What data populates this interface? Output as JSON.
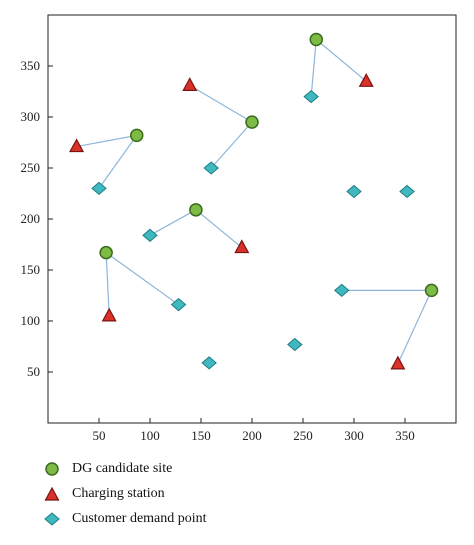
{
  "chart_data": {
    "type": "scatter",
    "xlim": [
      0,
      400
    ],
    "ylim": [
      0,
      400
    ],
    "x_ticks": [
      50,
      100,
      150,
      200,
      250,
      300,
      350
    ],
    "y_ticks": [
      50,
      100,
      150,
      200,
      250,
      300,
      350
    ],
    "grid": false,
    "legend_position": "below",
    "colors": {
      "dg": "#7dbb45",
      "dg_stroke": "#3a6b1e",
      "charging": "#d8322b",
      "charging_stroke": "#7a1410",
      "demand": "#3fb8bf",
      "demand_stroke": "#1f7d84",
      "line": "#8db6da"
    },
    "series": [
      {
        "name": "DG candidate site",
        "marker": "circle",
        "points": [
          [
            263,
            376
          ],
          [
            200,
            295
          ],
          [
            87,
            282
          ],
          [
            145,
            209
          ],
          [
            57,
            167
          ],
          [
            376,
            130
          ]
        ]
      },
      {
        "name": "Charging station",
        "marker": "triangle",
        "points": [
          [
            139,
            331
          ],
          [
            312,
            335
          ],
          [
            28,
            271
          ],
          [
            190,
            172
          ],
          [
            60,
            105
          ],
          [
            343,
            58
          ]
        ]
      },
      {
        "name": "Customer demand point",
        "marker": "diamond",
        "points": [
          [
            258,
            320
          ],
          [
            160,
            250
          ],
          [
            50,
            230
          ],
          [
            100,
            184
          ],
          [
            300,
            227
          ],
          [
            352,
            227
          ],
          [
            128,
            116
          ],
          [
            288,
            130
          ],
          [
            158,
            59
          ],
          [
            242,
            77
          ]
        ]
      }
    ],
    "links": [
      [
        [
          263,
          376
        ],
        [
          258,
          320
        ]
      ],
      [
        [
          263,
          376
        ],
        [
          312,
          335
        ]
      ],
      [
        [
          200,
          295
        ],
        [
          139,
          331
        ]
      ],
      [
        [
          200,
          295
        ],
        [
          160,
          250
        ]
      ],
      [
        [
          87,
          282
        ],
        [
          28,
          271
        ]
      ],
      [
        [
          87,
          282
        ],
        [
          50,
          230
        ]
      ],
      [
        [
          145,
          209
        ],
        [
          100,
          184
        ]
      ],
      [
        [
          145,
          209
        ],
        [
          190,
          172
        ]
      ],
      [
        [
          57,
          167
        ],
        [
          60,
          105
        ]
      ],
      [
        [
          57,
          167
        ],
        [
          128,
          116
        ]
      ],
      [
        [
          376,
          130
        ],
        [
          288,
          130
        ]
      ],
      [
        [
          376,
          130
        ],
        [
          343,
          58
        ]
      ]
    ]
  }
}
